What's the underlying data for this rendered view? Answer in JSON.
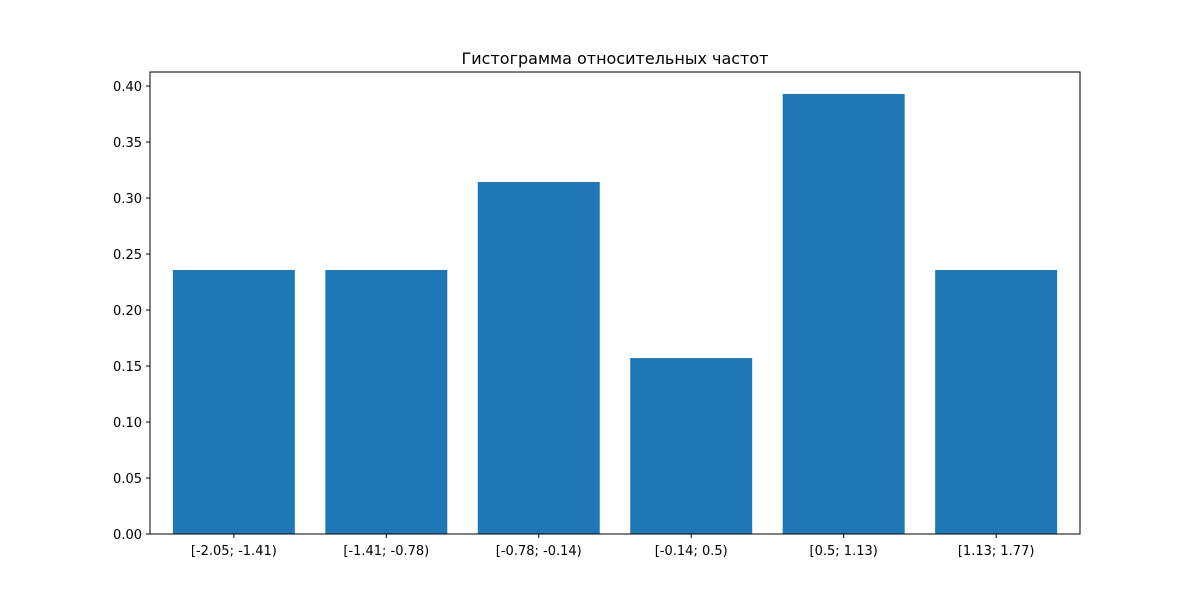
{
  "chart_data": {
    "type": "bar",
    "title": "Гистограмма относительных частот",
    "xlabel": "",
    "ylabel": "",
    "categories": [
      "[-2.05; -1.41)",
      "[-1.41; -0.78)",
      "[-0.78; -0.14)",
      "[-0.14; 0.5)",
      "[0.5; 1.13)",
      "[1.13; 1.77)"
    ],
    "values": [
      0.2357,
      0.2357,
      0.3143,
      0.1571,
      0.3929,
      0.2357
    ],
    "ylim": [
      0,
      0.4125
    ],
    "yticks": [
      "0.00",
      "0.05",
      "0.10",
      "0.15",
      "0.20",
      "0.25",
      "0.30",
      "0.35",
      "0.40"
    ],
    "bar_color": "#1f77b4",
    "grid": false,
    "legend": "none"
  }
}
